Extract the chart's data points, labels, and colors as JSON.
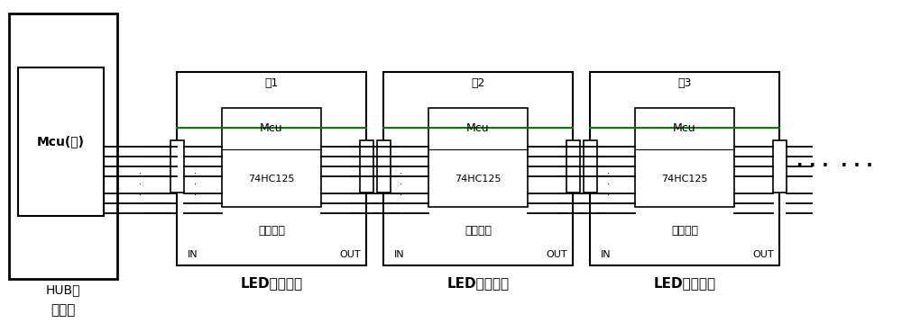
{
  "bg_color": "#ffffff",
  "line_color": "#000000",
  "green_line_color": "#008000",
  "fig_width": 10.0,
  "fig_height": 3.59,
  "dpi": 100,
  "receiver_card_label": "接收卡",
  "hub_label": "HUB板",
  "mcu_main_label": "Mcu(主)",
  "slave_labels": [
    "从1",
    "从2",
    "从3"
  ],
  "mcu_label": "Mcu",
  "ic_label": "74HC125",
  "smart_label": "智能模块",
  "led_label": "LED显示模组",
  "in_label": "IN",
  "out_label": "OUT",
  "ellipsis": "· · ·  · · ·",
  "xlim": [
    0,
    10
  ],
  "ylim": [
    0,
    3.59
  ]
}
